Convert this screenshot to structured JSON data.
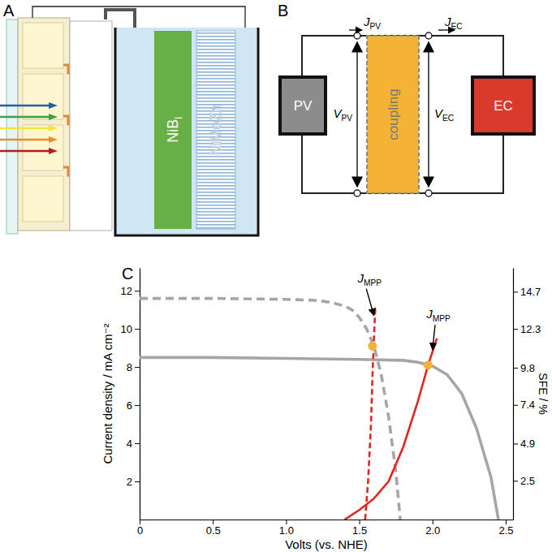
{
  "panel_a": {
    "label": "A",
    "electrodes": [
      {
        "text": "NiB",
        "sub": "i"
      },
      {
        "text": "NiMoZn"
      }
    ]
  },
  "panel_b": {
    "label": "B",
    "boxes": [
      "PV",
      "coupling",
      "EC"
    ],
    "currents": [
      {
        "text": "J",
        "sub": "PV"
      },
      {
        "text": "J",
        "sub": "EC"
      }
    ],
    "voltages": [
      {
        "text": "V",
        "sub": "PV"
      },
      {
        "text": "V",
        "sub": "EC"
      }
    ]
  },
  "panel_c": {
    "label": "C"
  },
  "chart_data": {
    "type": "line",
    "x_label": "Volts (vs. NHE)",
    "y_label": "Current density / mA cm⁻²",
    "y2_label": "SFE / %",
    "xlim": [
      0,
      2.55
    ],
    "xticks": [
      0,
      0.5,
      {
        "value": 1,
        "label": "1.0"
      },
      1.5,
      {
        "value": 2,
        "label": "2.0"
      },
      2.5
    ],
    "ylim": [
      0,
      13.2
    ],
    "yticks": [
      2,
      4,
      6,
      8,
      10,
      12
    ],
    "y2lim": [
      0,
      16.24
    ],
    "y2ticks": [
      2.5,
      4.9,
      7.4,
      9.8,
      12.3,
      14.7
    ],
    "grid": false,
    "series": [
      {
        "type": "line",
        "line_style": "dashed",
        "color": "#a6a6a6",
        "x": [
          0,
          0.5,
          1.0,
          1.2,
          1.3,
          1.4,
          1.45,
          1.5,
          1.55,
          1.6,
          1.65,
          1.7,
          1.75,
          1.78
        ],
        "values": [
          11.6,
          11.6,
          11.55,
          11.5,
          11.4,
          11.2,
          11.0,
          10.6,
          10.0,
          9.1,
          7.6,
          5.4,
          2.5,
          0
        ]
      },
      {
        "type": "line",
        "line_style": "solid",
        "color": "#a6a6a6",
        "x": [
          0,
          0.5,
          1.0,
          1.5,
          1.8,
          1.9,
          2.0,
          2.1,
          2.2,
          2.3,
          2.4,
          2.45
        ],
        "values": [
          8.5,
          8.5,
          8.45,
          8.4,
          8.35,
          8.25,
          8.05,
          7.6,
          6.6,
          4.8,
          2.2,
          0
        ]
      },
      {
        "type": "line",
        "line_style": "dashed",
        "color": "#e0261f",
        "x": [
          1.54,
          1.56,
          1.58,
          1.59,
          1.6,
          1.61
        ],
        "values": [
          0,
          2,
          5,
          7.5,
          9.5,
          11.2
        ]
      },
      {
        "type": "line",
        "line_style": "solid",
        "color": "#e0261f",
        "x": [
          1.4,
          1.5,
          1.6,
          1.7,
          1.8,
          1.9,
          1.97,
          2.03
        ],
        "values": [
          0,
          0.5,
          1.1,
          2.0,
          3.8,
          6.2,
          8.1,
          9.5
        ]
      },
      {
        "type": "scatter",
        "marker": "circle",
        "color": "#f5b335",
        "x": [
          1.59,
          1.97
        ],
        "values": [
          9.1,
          8.1
        ]
      }
    ],
    "annotations": [
      {
        "text": "J",
        "sub": "MPP",
        "x": 1.57,
        "y": 12.45,
        "arrow_x": 1.6,
        "arrow_y": 10.7
      },
      {
        "text": "J",
        "sub": "MPP",
        "x": 2.04,
        "y": 10.55,
        "arrow_x": 2.0,
        "arrow_y": 8.9
      }
    ]
  }
}
